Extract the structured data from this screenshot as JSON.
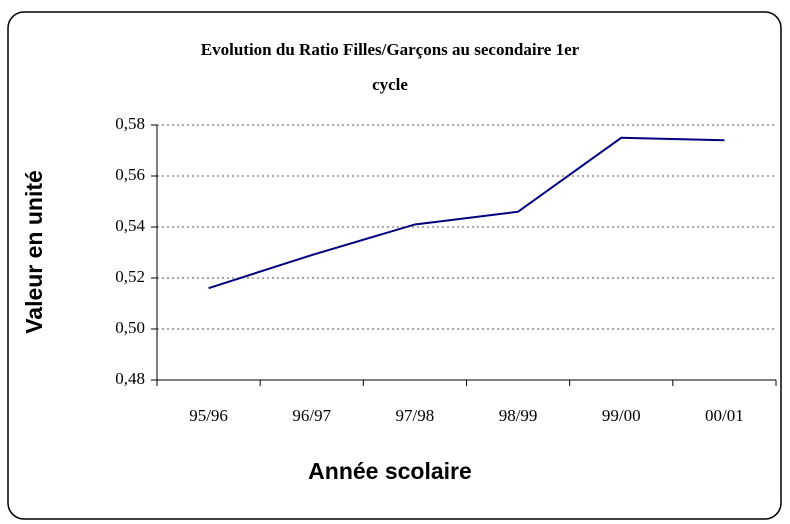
{
  "chart_data": {
    "type": "line",
    "title": "Evolution du Ratio Filles/Garçons au secondaire 1er cycle",
    "x_label": "Année scolaire",
    "y_label": "Valeur en unité",
    "categories": [
      "95/96",
      "96/97",
      "97/98",
      "98/99",
      "99/00",
      "00/01"
    ],
    "series": [
      {
        "name": "Ratio Filles/Garçons",
        "color": "#000080",
        "values": [
          0.516,
          0.529,
          0.541,
          0.546,
          0.575,
          0.574
        ]
      }
    ],
    "ylim": [
      0.48,
      0.58
    ],
    "yticks": [
      {
        "value": 0.48,
        "label": "0,48"
      },
      {
        "value": 0.5,
        "label": "0,50"
      },
      {
        "value": 0.52,
        "label": "0,52"
      },
      {
        "value": 0.54,
        "label": "0,54"
      },
      {
        "value": 0.56,
        "label": "0,56"
      },
      {
        "value": 0.58,
        "label": "0,58"
      }
    ],
    "grid": true
  }
}
